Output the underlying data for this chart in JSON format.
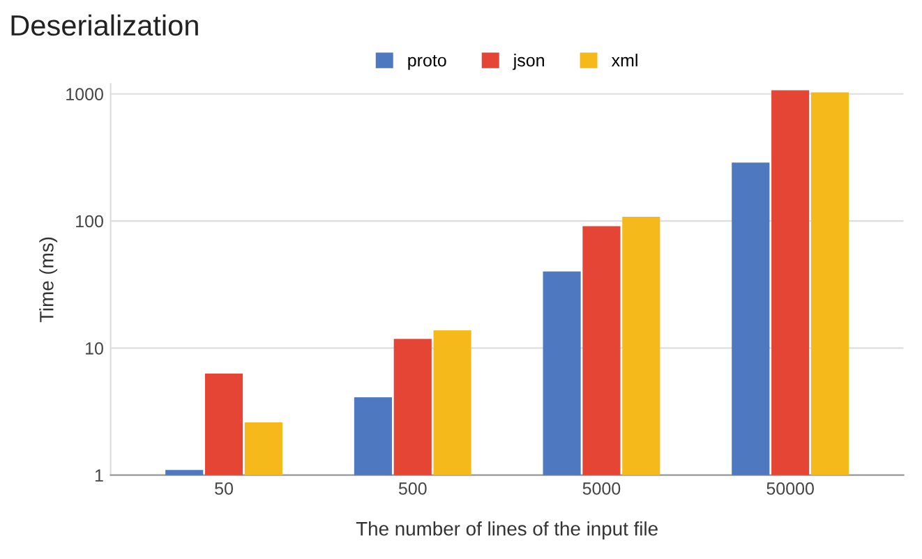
{
  "chart_data": {
    "type": "bar",
    "title": "Deserialization",
    "xlabel": "The number of lines of the input file",
    "ylabel": "Time (ms)",
    "categories": [
      "50",
      "500",
      "5000",
      "50000"
    ],
    "series": [
      {
        "name": "proto",
        "color": "#4e79c0",
        "values": [
          1.1,
          4.1,
          40,
          288
        ]
      },
      {
        "name": "json",
        "color": "#e44535",
        "values": [
          6.3,
          11.8,
          91,
          1070
        ]
      },
      {
        "name": "xml",
        "color": "#f6b91c",
        "values": [
          2.6,
          13.8,
          108,
          1030
        ]
      }
    ],
    "log": "y",
    "ylim": [
      1,
      1200
    ],
    "yticks": [
      1,
      10,
      100,
      1000
    ],
    "grid": "y",
    "legend": "top"
  }
}
